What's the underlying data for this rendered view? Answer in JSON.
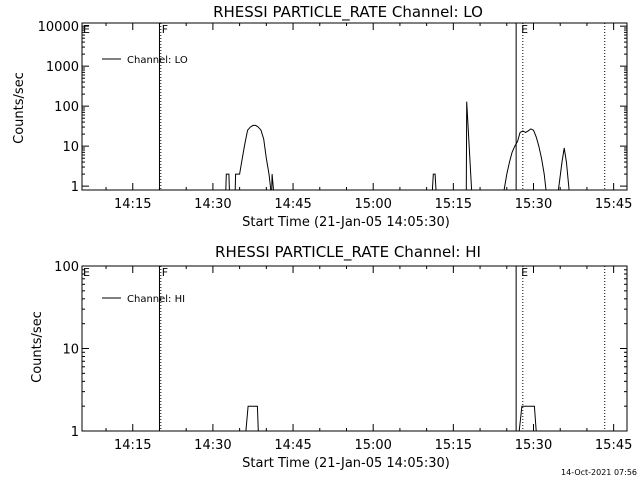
{
  "timestamp": "14-Oct-2021 07:56",
  "chart_data": [
    {
      "type": "line",
      "title": "RHESSI PARTICLE_RATE Channel: LO",
      "xlabel": "Start Time (21-Jan-05 14:05:30)",
      "ylabel": "Counts/sec",
      "yscale": "log",
      "ylim": [
        0.8,
        12000
      ],
      "xlim": [
        "14:05:30",
        "15:47:30"
      ],
      "x_ticks": [
        "14:15",
        "14:30",
        "14:45",
        "15:00",
        "15:15",
        "15:30",
        "15:45"
      ],
      "y_ticks": [
        "1",
        "10",
        "100",
        "1000",
        "10000"
      ],
      "legend": {
        "position": "top-left",
        "entries": [
          "Channel: LO"
        ]
      },
      "vlines": [
        {
          "time": "14:20:00",
          "style": "solid"
        },
        {
          "time": "14:20:15",
          "style": "dotted"
        },
        {
          "time": "15:26:45",
          "style": "solid"
        },
        {
          "time": "15:28:00",
          "style": "dotted"
        },
        {
          "time": "15:43:20",
          "style": "dotted"
        }
      ],
      "markers": [
        {
          "label": "F",
          "time": "14:20:15"
        },
        {
          "label": "E",
          "time": "15:27:30"
        },
        {
          "label": "E",
          "time": "14:05:30"
        }
      ],
      "series": [
        {
          "name": "Channel: LO",
          "points": [
            [
              "14:32:25",
              0.8
            ],
            [
              "14:32:30",
              2
            ],
            [
              "14:33:00",
              2
            ],
            [
              "14:33:05",
              0.8
            ],
            [
              "14:34:10",
              0.8
            ],
            [
              "14:34:15",
              2
            ],
            [
              "14:35:00",
              2
            ],
            [
              "14:35:30",
              5
            ],
            [
              "14:36:00",
              12
            ],
            [
              "14:36:30",
              25
            ],
            [
              "14:37:00",
              30
            ],
            [
              "14:37:30",
              33
            ],
            [
              "14:38:00",
              33
            ],
            [
              "14:38:30",
              30
            ],
            [
              "14:39:00",
              25
            ],
            [
              "14:39:30",
              15
            ],
            [
              "14:40:00",
              5
            ],
            [
              "14:40:30",
              2
            ],
            [
              "14:40:50",
              0.8
            ],
            [
              "14:41:00",
              0.8
            ],
            [
              "14:41:05",
              2
            ],
            [
              "14:41:20",
              0.8
            ],
            [
              "15:11:05",
              0.8
            ],
            [
              "15:11:15",
              2
            ],
            [
              "15:11:35",
              2
            ],
            [
              "15:11:45",
              0.8
            ],
            [
              "15:17:25",
              0.8
            ],
            [
              "15:17:30",
              130
            ],
            [
              "15:18:25",
              0.8
            ],
            [
              "15:24:30",
              0.8
            ],
            [
              "15:25:00",
              2
            ],
            [
              "15:25:30",
              4
            ],
            [
              "15:26:00",
              7
            ],
            [
              "15:26:30",
              10
            ],
            [
              "15:27:00",
              13
            ],
            [
              "15:27:30",
              22
            ],
            [
              "15:28:00",
              24
            ],
            [
              "15:28:30",
              22
            ],
            [
              "15:29:00",
              24
            ],
            [
              "15:29:30",
              27
            ],
            [
              "15:30:00",
              25
            ],
            [
              "15:30:30",
              17
            ],
            [
              "15:31:00",
              10
            ],
            [
              "15:31:30",
              5
            ],
            [
              "15:32:00",
              2
            ],
            [
              "15:32:20",
              0.8
            ],
            [
              "15:34:40",
              0.8
            ],
            [
              "15:35:20",
              4
            ],
            [
              "15:35:45",
              9
            ],
            [
              "15:36:10",
              4
            ],
            [
              "15:36:40",
              0.8
            ]
          ]
        }
      ]
    },
    {
      "type": "line",
      "title": "RHESSI PARTICLE_RATE Channel: HI",
      "xlabel": "Start Time (21-Jan-05 14:05:30)",
      "ylabel": "Counts/sec",
      "yscale": "log",
      "ylim": [
        1,
        100
      ],
      "xlim": [
        "14:05:30",
        "15:47:30"
      ],
      "x_ticks": [
        "14:15",
        "14:30",
        "14:45",
        "15:00",
        "15:15",
        "15:30",
        "15:45"
      ],
      "y_ticks": [
        "1",
        "10",
        "100"
      ],
      "legend": {
        "position": "top-left",
        "entries": [
          "Channel: HI"
        ]
      },
      "vlines": [
        {
          "time": "14:20:00",
          "style": "solid"
        },
        {
          "time": "14:20:15",
          "style": "dotted"
        },
        {
          "time": "15:26:45",
          "style": "solid"
        },
        {
          "time": "15:28:00",
          "style": "dotted"
        },
        {
          "time": "15:43:20",
          "style": "dotted"
        }
      ],
      "markers": [
        {
          "label": "F",
          "time": "14:20:15"
        },
        {
          "label": "E",
          "time": "15:27:30"
        },
        {
          "label": "E",
          "time": "14:05:30"
        }
      ],
      "series": [
        {
          "name": "Channel: HI",
          "points": [
            [
              "14:36:10",
              1
            ],
            [
              "14:36:35",
              2
            ],
            [
              "14:38:20",
              2
            ],
            [
              "14:38:30",
              1
            ],
            [
              "15:27:20",
              1
            ],
            [
              "15:27:50",
              2
            ],
            [
              "15:30:10",
              2
            ],
            [
              "15:30:30",
              1
            ]
          ]
        }
      ]
    }
  ]
}
